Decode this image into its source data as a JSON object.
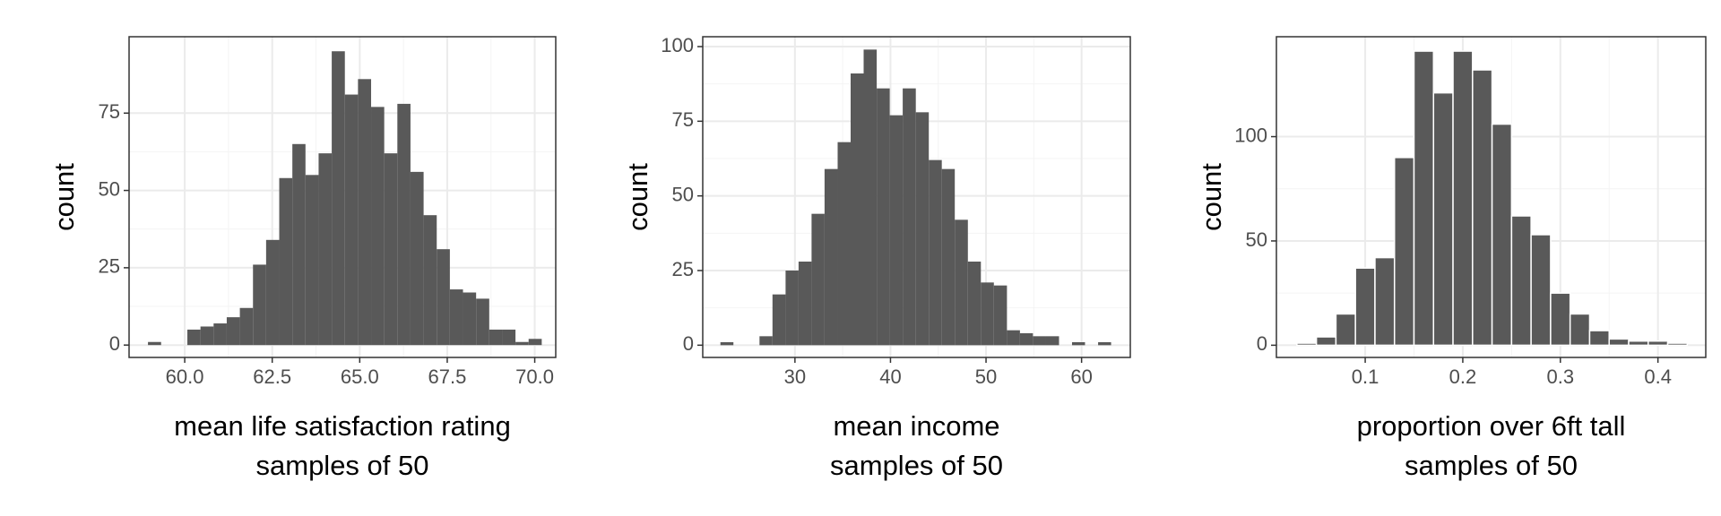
{
  "chart_data": [
    {
      "type": "histogram",
      "xlabel": [
        "mean life satisfaction rating",
        "samples of 50"
      ],
      "ylabel": "count",
      "bins": [
        58.95,
        59.325,
        59.7,
        60.075,
        60.45,
        60.825,
        61.2,
        61.575,
        61.95,
        62.325,
        62.7,
        63.075,
        63.45,
        63.825,
        64.2,
        64.575,
        64.95,
        65.325,
        65.7,
        66.075,
        66.45,
        66.825,
        67.2,
        67.575,
        67.95,
        68.325,
        68.7,
        69.075,
        69.45,
        69.825,
        70.2
      ],
      "values": [
        1,
        0,
        0,
        5,
        6,
        7,
        9,
        12,
        26,
        34,
        54,
        65,
        55,
        62,
        95,
        81,
        86,
        77,
        62,
        78,
        56,
        42,
        31,
        18,
        17,
        15,
        5,
        5,
        1,
        2
      ],
      "color": "#595959",
      "xlim": [
        58.41,
        70.6
      ],
      "ylim": [
        -4,
        99.7
      ],
      "xticks": [
        {
          "value": 60,
          "label": "60.0"
        },
        {
          "value": 62.5,
          "label": "62.5"
        },
        {
          "value": 65,
          "label": "65.0"
        },
        {
          "value": 67.5,
          "label": "67.5"
        },
        {
          "value": 70,
          "label": "70.0"
        }
      ],
      "yticks": [
        0,
        25,
        50,
        75
      ],
      "grid": true
    },
    {
      "type": "histogram",
      "xlabel": [
        "mean income",
        "samples of 50"
      ],
      "ylabel": "count",
      "bins": [
        22.2,
        23.56,
        24.93,
        26.29,
        27.65,
        29.02,
        30.38,
        31.74,
        33.1,
        34.47,
        35.83,
        37.19,
        38.56,
        39.92,
        41.28,
        42.65,
        44.01,
        45.37,
        46.73,
        48.1,
        49.46,
        50.82,
        52.19,
        53.55,
        54.91,
        56.28,
        57.64,
        59.0,
        60.36,
        61.73,
        63.09
      ],
      "values": [
        1,
        0,
        0,
        3,
        17,
        25,
        28,
        44,
        59,
        68,
        91,
        99,
        86,
        77,
        86,
        78,
        62,
        59,
        42,
        28,
        21,
        20,
        5,
        4,
        3,
        3,
        0,
        1,
        0,
        1
      ],
      "color": "#595959",
      "xlim": [
        20.35,
        65.1
      ],
      "ylim": [
        -4.1,
        103.3
      ],
      "xticks": [
        30,
        40,
        50,
        60
      ],
      "yticks": [
        0,
        25,
        50,
        75,
        100
      ],
      "grid": true
    },
    {
      "type": "histogram",
      "xlabel": [
        "proportion over 6ft tall",
        "samples of 50"
      ],
      "ylabel": "count",
      "bins": [
        0.03,
        0.05,
        0.07,
        0.09,
        0.11,
        0.13,
        0.15,
        0.17,
        0.19,
        0.21,
        0.23,
        0.25,
        0.27,
        0.29,
        0.31,
        0.33,
        0.35,
        0.37,
        0.39,
        0.41,
        0.43
      ],
      "values": [
        1,
        4,
        15,
        37,
        42,
        90,
        141,
        121,
        141,
        132,
        106,
        62,
        53,
        25,
        15,
        7,
        3,
        2,
        2,
        1
      ],
      "color": "#595959",
      "edgecolor": "#ffffff",
      "xlim": [
        0.009,
        0.449
      ],
      "ylim": [
        -5.85,
        147.9
      ],
      "xticks": [
        0.1,
        0.2,
        0.3,
        0.4
      ],
      "yticks": [
        0,
        50,
        100
      ],
      "grid": true
    }
  ]
}
